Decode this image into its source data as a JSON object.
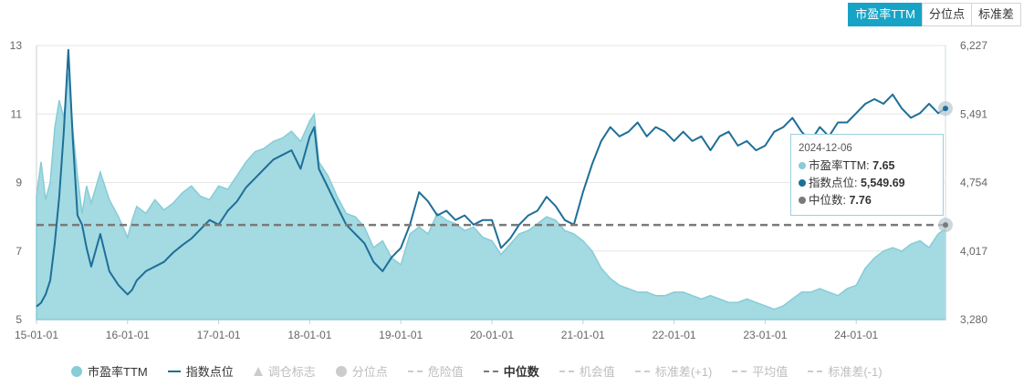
{
  "tabs": [
    {
      "label": "市盈率TTM",
      "active": true
    },
    {
      "label": "分位点",
      "active": false
    },
    {
      "label": "标准差",
      "active": false
    }
  ],
  "colors": {
    "pe_fill": "#9fd8e0",
    "pe_line": "#87ccd6",
    "index_line": "#1e6f98",
    "median": "#7a7a7a",
    "tab_active": "#16a3c6"
  },
  "tooltip": {
    "date": "2024-12-06",
    "rows": [
      {
        "label": "市盈率TTM:",
        "value": "7.65",
        "color": "#87ccd6"
      },
      {
        "label": "指数点位:",
        "value": "5,549.69",
        "color": "#1e6f98"
      },
      {
        "label": "中位数:",
        "value": "7.76",
        "color": "#7a7a7a"
      }
    ]
  },
  "legend": [
    {
      "label": "市盈率TTM",
      "symbol": "circle",
      "color": "#87ccd6",
      "active": true
    },
    {
      "label": "指数点位",
      "symbol": "line",
      "color": "#1e6f98",
      "active": true
    },
    {
      "label": "调仓标志",
      "symbol": "triangle",
      "color": "#cccccc",
      "active": false
    },
    {
      "label": "分位点",
      "symbol": "circle",
      "color": "#cccccc",
      "active": false
    },
    {
      "label": "危险值",
      "symbol": "dash",
      "color": "#cccccc",
      "active": false
    },
    {
      "label": "中位数",
      "symbol": "dash",
      "color": "#7a7a7a",
      "active": true
    },
    {
      "label": "机会值",
      "symbol": "dash",
      "color": "#cccccc",
      "active": false
    },
    {
      "label": "标准差(+1)",
      "symbol": "dash",
      "color": "#cccccc",
      "active": false
    },
    {
      "label": "平均值",
      "symbol": "dash",
      "color": "#cccccc",
      "active": false
    },
    {
      "label": "标准差(-1)",
      "symbol": "dash",
      "color": "#cccccc",
      "active": false
    }
  ],
  "chart_data": {
    "type": "area",
    "x_ticks": [
      "15-01-01",
      "16-01-01",
      "17-01-01",
      "18-01-01",
      "19-01-01",
      "20-01-01",
      "21-01-01",
      "22-01-01",
      "23-01-01",
      "24-01-01"
    ],
    "x_range": [
      2015.0,
      2024.98
    ],
    "y_left": {
      "range": [
        5,
        13
      ],
      "ticks": [
        "5",
        "7",
        "9",
        "11",
        "13"
      ]
    },
    "y_right": {
      "range": [
        3280,
        6227
      ],
      "ticks": [
        "3,280",
        "4,017",
        "4,754",
        "5,491",
        "6,227"
      ]
    },
    "median": 7.76,
    "grid": true,
    "legend_position": "bottom",
    "series": [
      {
        "name": "市盈率TTM",
        "axis": "left",
        "x": [
          2015.0,
          2015.05,
          2015.1,
          2015.15,
          2015.2,
          2015.25,
          2015.3,
          2015.35,
          2015.4,
          2015.45,
          2015.5,
          2015.55,
          2015.6,
          2015.7,
          2015.8,
          2015.9,
          2016.0,
          2016.05,
          2016.1,
          2016.2,
          2016.3,
          2016.4,
          2016.5,
          2016.6,
          2016.7,
          2016.8,
          2016.9,
          2017.0,
          2017.1,
          2017.2,
          2017.3,
          2017.4,
          2017.5,
          2017.6,
          2017.7,
          2017.8,
          2017.9,
          2018.0,
          2018.05,
          2018.1,
          2018.2,
          2018.3,
          2018.4,
          2018.5,
          2018.6,
          2018.7,
          2018.8,
          2018.9,
          2019.0,
          2019.1,
          2019.2,
          2019.3,
          2019.4,
          2019.5,
          2019.6,
          2019.7,
          2019.8,
          2019.9,
          2020.0,
          2020.1,
          2020.2,
          2020.3,
          2020.4,
          2020.5,
          2020.6,
          2020.7,
          2020.8,
          2020.9,
          2021.0,
          2021.1,
          2021.2,
          2021.3,
          2021.4,
          2021.5,
          2021.6,
          2021.7,
          2021.8,
          2021.9,
          2022.0,
          2022.1,
          2022.2,
          2022.3,
          2022.4,
          2022.5,
          2022.6,
          2022.7,
          2022.8,
          2022.9,
          2023.0,
          2023.1,
          2023.2,
          2023.3,
          2023.4,
          2023.5,
          2023.6,
          2023.7,
          2023.8,
          2023.9,
          2024.0,
          2024.1,
          2024.2,
          2024.3,
          2024.4,
          2024.5,
          2024.6,
          2024.7,
          2024.8,
          2024.9,
          2024.98
        ],
        "values": [
          8.6,
          9.6,
          8.5,
          9.0,
          10.6,
          11.4,
          10.9,
          12.2,
          10.5,
          9.2,
          8.1,
          8.9,
          8.4,
          9.3,
          8.5,
          8.0,
          7.4,
          7.9,
          8.3,
          8.1,
          8.5,
          8.2,
          8.4,
          8.7,
          8.9,
          8.6,
          8.5,
          8.9,
          8.8,
          9.2,
          9.6,
          9.9,
          10.0,
          10.2,
          10.3,
          10.5,
          10.2,
          10.8,
          11.0,
          9.6,
          9.2,
          8.6,
          8.1,
          8.0,
          7.7,
          7.1,
          7.3,
          6.8,
          6.6,
          7.5,
          7.7,
          7.5,
          8.1,
          7.9,
          7.8,
          7.6,
          7.7,
          7.4,
          7.3,
          6.9,
          7.2,
          7.5,
          7.6,
          7.8,
          8.0,
          7.9,
          7.6,
          7.5,
          7.3,
          7.0,
          6.5,
          6.2,
          6.0,
          5.9,
          5.8,
          5.8,
          5.7,
          5.7,
          5.8,
          5.8,
          5.7,
          5.6,
          5.7,
          5.6,
          5.5,
          5.5,
          5.6,
          5.5,
          5.4,
          5.3,
          5.4,
          5.6,
          5.8,
          5.8,
          5.9,
          5.8,
          5.7,
          5.9,
          6.0,
          6.5,
          6.8,
          7.0,
          7.1,
          7.0,
          7.2,
          7.3,
          7.1,
          7.5,
          7.65
        ]
      },
      {
        "name": "指数点位",
        "axis": "right",
        "x": [
          2015.0,
          2015.05,
          2015.1,
          2015.15,
          2015.2,
          2015.25,
          2015.3,
          2015.35,
          2015.4,
          2015.45,
          2015.5,
          2015.55,
          2015.6,
          2015.7,
          2015.8,
          2015.9,
          2016.0,
          2016.05,
          2016.1,
          2016.2,
          2016.3,
          2016.4,
          2016.5,
          2016.6,
          2016.7,
          2016.8,
          2016.9,
          2017.0,
          2017.1,
          2017.2,
          2017.3,
          2017.4,
          2017.5,
          2017.6,
          2017.7,
          2017.8,
          2017.9,
          2018.0,
          2018.05,
          2018.1,
          2018.2,
          2018.3,
          2018.4,
          2018.5,
          2018.6,
          2018.7,
          2018.8,
          2018.9,
          2019.0,
          2019.1,
          2019.2,
          2019.3,
          2019.4,
          2019.5,
          2019.6,
          2019.7,
          2019.8,
          2019.9,
          2020.0,
          2020.1,
          2020.2,
          2020.3,
          2020.4,
          2020.5,
          2020.6,
          2020.7,
          2020.8,
          2020.9,
          2021.0,
          2021.1,
          2021.2,
          2021.3,
          2021.4,
          2021.5,
          2021.6,
          2021.7,
          2021.8,
          2021.9,
          2022.0,
          2022.1,
          2022.2,
          2022.3,
          2022.4,
          2022.5,
          2022.6,
          2022.7,
          2022.8,
          2022.9,
          2023.0,
          2023.1,
          2023.2,
          2023.3,
          2023.4,
          2023.5,
          2023.6,
          2023.7,
          2023.8,
          2023.9,
          2024.0,
          2024.1,
          2024.2,
          2024.3,
          2024.4,
          2024.5,
          2024.6,
          2024.7,
          2024.8,
          2024.9,
          2024.98
        ],
        "values": [
          3420,
          3460,
          3550,
          3700,
          4100,
          4600,
          5300,
          6180,
          5200,
          4400,
          4300,
          4050,
          3850,
          4200,
          3800,
          3650,
          3550,
          3600,
          3700,
          3800,
          3850,
          3900,
          4000,
          4080,
          4150,
          4250,
          4350,
          4300,
          4450,
          4550,
          4700,
          4800,
          4900,
          5000,
          5050,
          5100,
          4900,
          5250,
          5350,
          4900,
          4700,
          4500,
          4300,
          4200,
          4100,
          3900,
          3800,
          3950,
          4050,
          4300,
          4650,
          4550,
          4400,
          4450,
          4350,
          4400,
          4300,
          4350,
          4350,
          4050,
          4150,
          4300,
          4400,
          4450,
          4600,
          4500,
          4350,
          4300,
          4650,
          4950,
          5200,
          5350,
          5250,
          5300,
          5400,
          5250,
          5350,
          5300,
          5200,
          5300,
          5200,
          5250,
          5100,
          5250,
          5300,
          5150,
          5200,
          5100,
          5150,
          5300,
          5350,
          5450,
          5300,
          5200,
          5350,
          5250,
          5400,
          5400,
          5500,
          5600,
          5650,
          5600,
          5700,
          5550,
          5450,
          5500,
          5600,
          5500,
          5549.69
        ]
      }
    ]
  }
}
